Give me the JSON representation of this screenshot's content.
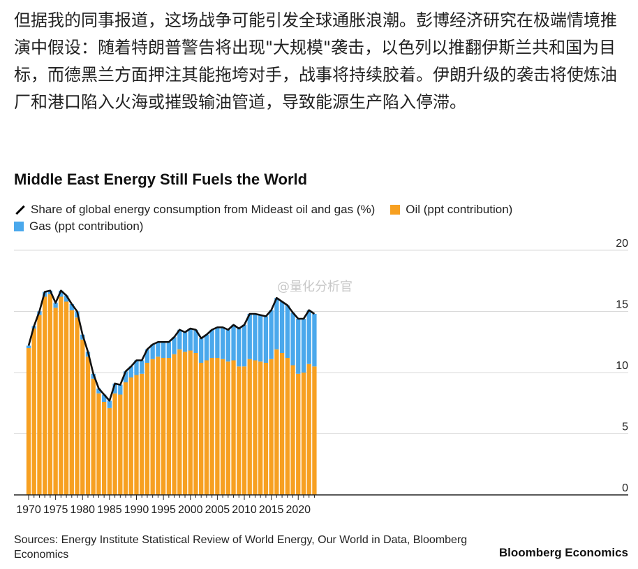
{
  "article": {
    "paragraph": "但据我的同事报道，这场战争可能引发全球通胀浪潮。彭博经济研究在极端情境推演中假设：随着特朗普警告将出现\"大规模\"袭击，以色列以推翻伊斯兰共和国为目标，而德黑兰方面押注其能拖垮对手，战事将持续胶着。伊朗升级的袭击将使炼油厂和港口陷入火海或摧毁输油管道，导致能源生产陷入停滞。"
  },
  "watermark": "@量化分析官",
  "sources": "Sources: Energy Institute Statistical Review of World Energy, Our World in Data, Bloomberg Economics",
  "brand": "Bloomberg Economics",
  "colors": {
    "oil": "#f7a021",
    "gas": "#4aa8ec",
    "line": "#111111",
    "grid": "#d9d9d9"
  },
  "chart_data": {
    "type": "bar",
    "stacked": true,
    "title": "Middle East Energy Still Fuels the World",
    "legend": {
      "line": "Share of global energy consumption from Mideast oil and gas (%)",
      "oil": "Oil (ppt contribution)",
      "gas": "Gas (ppt contribution)"
    },
    "ylim": [
      0,
      20
    ],
    "y_ticks": [
      0,
      5,
      10,
      15,
      20
    ],
    "x_tick_labels": [
      "1970",
      "1975",
      "1980",
      "1985",
      "1990",
      "1995",
      "2000",
      "2005",
      "2010",
      "2015",
      "2020"
    ],
    "years": [
      1970,
      1971,
      1972,
      1973,
      1974,
      1975,
      1976,
      1977,
      1978,
      1979,
      1980,
      1981,
      1982,
      1983,
      1984,
      1985,
      1986,
      1987,
      1988,
      1989,
      1990,
      1991,
      1992,
      1993,
      1994,
      1995,
      1996,
      1997,
      1998,
      1999,
      2000,
      2001,
      2002,
      2003,
      2004,
      2005,
      2006,
      2007,
      2008,
      2009,
      2010,
      2011,
      2012,
      2013,
      2014,
      2015,
      2016,
      2017,
      2018,
      2019,
      2020,
      2021,
      2022,
      2023
    ],
    "series": [
      {
        "name": "Oil (ppt contribution)",
        "key": "oil",
        "values": [
          12.0,
          13.6,
          14.7,
          16.2,
          16.4,
          15.3,
          16.2,
          15.8,
          15.1,
          14.5,
          12.7,
          11.3,
          9.5,
          8.3,
          7.6,
          7.1,
          8.3,
          8.2,
          9.2,
          9.6,
          9.8,
          9.9,
          10.8,
          11.1,
          11.3,
          11.2,
          11.2,
          11.5,
          11.9,
          11.7,
          11.8,
          11.6,
          10.8,
          11.0,
          11.2,
          11.2,
          11.1,
          10.9,
          11.0,
          10.5,
          10.5,
          11.1,
          11.0,
          10.9,
          10.8,
          11.1,
          11.9,
          11.6,
          11.2,
          10.6,
          9.9,
          10.0,
          10.7,
          10.5
        ]
      },
      {
        "name": "Gas (ppt contribution)",
        "key": "gas",
        "values": [
          0.2,
          0.2,
          0.3,
          0.4,
          0.3,
          0.4,
          0.5,
          0.5,
          0.5,
          0.5,
          0.4,
          0.4,
          0.4,
          0.4,
          0.6,
          0.6,
          0.8,
          0.8,
          0.9,
          0.9,
          1.2,
          1.1,
          1.1,
          1.2,
          1.2,
          1.3,
          1.3,
          1.4,
          1.6,
          1.6,
          1.8,
          1.9,
          2.0,
          2.1,
          2.3,
          2.5,
          2.6,
          2.6,
          2.9,
          3.1,
          3.4,
          3.7,
          3.8,
          3.8,
          3.8,
          4.0,
          4.2,
          4.2,
          4.3,
          4.3,
          4.5,
          4.4,
          4.4,
          4.3
        ]
      },
      {
        "name": "Share of global energy consumption from Mideast oil and gas (%)",
        "key": "total",
        "type": "line",
        "values": [
          12.2,
          13.8,
          15.0,
          16.6,
          16.7,
          15.7,
          16.7,
          16.3,
          15.6,
          15.0,
          13.1,
          11.7,
          9.9,
          8.7,
          8.2,
          7.7,
          9.1,
          9.0,
          10.1,
          10.5,
          11.0,
          11.0,
          11.9,
          12.3,
          12.5,
          12.5,
          12.5,
          12.9,
          13.5,
          13.3,
          13.6,
          13.5,
          12.8,
          13.1,
          13.5,
          13.7,
          13.7,
          13.5,
          13.9,
          13.6,
          13.9,
          14.8,
          14.8,
          14.7,
          14.6,
          15.1,
          16.1,
          15.8,
          15.5,
          14.9,
          14.4,
          14.4,
          15.1,
          14.8
        ]
      }
    ]
  }
}
